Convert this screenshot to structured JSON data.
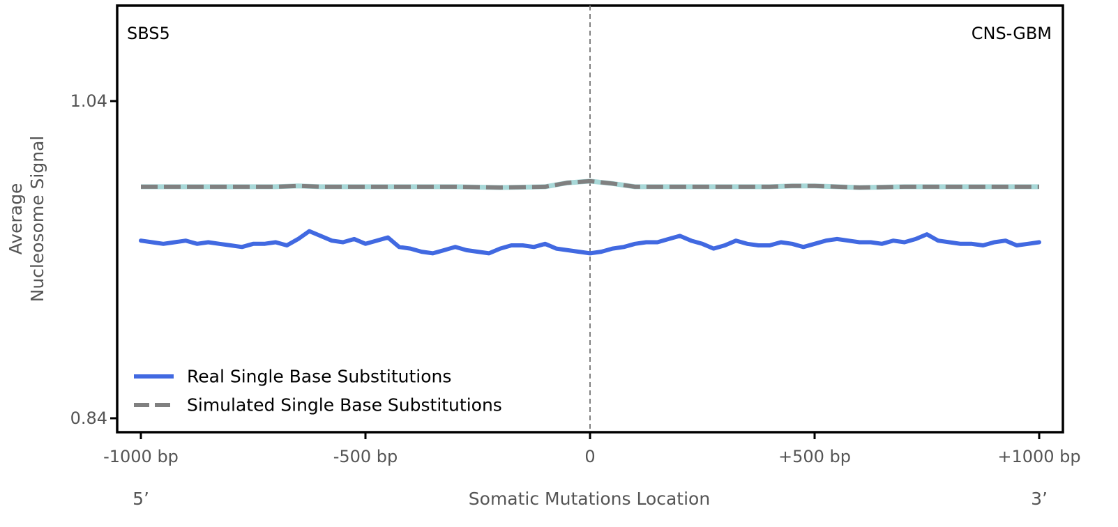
{
  "chart_data": {
    "type": "line",
    "signature_label": "SBS5",
    "tissue_label": "CNS-GBM",
    "xlabel": "Somatic Mutations Location",
    "ylabel_lines": [
      "Average",
      "Nucleosome Signal"
    ],
    "x_tick_labels": [
      "-1000 bp",
      "-500 bp",
      "0",
      "+500 bp",
      "+1000 bp"
    ],
    "x_ticks": [
      -1000,
      -500,
      0,
      500,
      1000
    ],
    "xlim": [
      -1000,
      1000
    ],
    "y_ticks": [
      1.04,
      0.84
    ],
    "y_tick_labels": [
      "1.04",
      "0.84"
    ],
    "ylim": [
      0.84,
      1.04
    ],
    "end_labels": {
      "left": "5’",
      "right": "3’"
    },
    "reference_line_x": 0,
    "grid": false,
    "legend_position": "lower-left",
    "series": [
      {
        "name": "Real Single Base Substitutions",
        "color": "#4169e1",
        "style": "solid",
        "x": [
          -1000,
          -975,
          -950,
          -925,
          -900,
          -875,
          -850,
          -825,
          -800,
          -775,
          -750,
          -725,
          -700,
          -675,
          -650,
          -625,
          -600,
          -575,
          -550,
          -525,
          -500,
          -475,
          -450,
          -425,
          -400,
          -375,
          -350,
          -325,
          -300,
          -275,
          -250,
          -225,
          -200,
          -175,
          -150,
          -125,
          -100,
          -75,
          -50,
          -25,
          0,
          25,
          50,
          75,
          100,
          125,
          150,
          175,
          200,
          225,
          250,
          275,
          300,
          325,
          350,
          375,
          400,
          425,
          450,
          475,
          500,
          525,
          550,
          575,
          600,
          625,
          650,
          675,
          700,
          725,
          750,
          775,
          800,
          825,
          850,
          875,
          900,
          925,
          950,
          975,
          1000
        ],
        "y": [
          0.952,
          0.951,
          0.95,
          0.951,
          0.952,
          0.95,
          0.951,
          0.95,
          0.949,
          0.948,
          0.95,
          0.95,
          0.951,
          0.949,
          0.953,
          0.958,
          0.955,
          0.952,
          0.951,
          0.953,
          0.95,
          0.952,
          0.954,
          0.948,
          0.947,
          0.945,
          0.944,
          0.946,
          0.948,
          0.946,
          0.945,
          0.944,
          0.947,
          0.949,
          0.949,
          0.948,
          0.95,
          0.947,
          0.946,
          0.945,
          0.944,
          0.945,
          0.947,
          0.948,
          0.95,
          0.951,
          0.951,
          0.953,
          0.955,
          0.952,
          0.95,
          0.947,
          0.949,
          0.952,
          0.95,
          0.949,
          0.949,
          0.951,
          0.95,
          0.948,
          0.95,
          0.952,
          0.953,
          0.952,
          0.951,
          0.951,
          0.95,
          0.952,
          0.951,
          0.953,
          0.956,
          0.952,
          0.951,
          0.95,
          0.95,
          0.949,
          0.951,
          0.952,
          0.949,
          0.95,
          0.951
        ]
      },
      {
        "name": "Simulated Single Base Substitutions",
        "color": "#808080",
        "style": "dashed",
        "x": [
          -1000,
          -900,
          -800,
          -700,
          -650,
          -600,
          -500,
          -400,
          -300,
          -200,
          -100,
          -50,
          0,
          50,
          100,
          200,
          300,
          400,
          450,
          500,
          600,
          700,
          800,
          900,
          1000
        ],
        "y": [
          0.986,
          0.986,
          0.986,
          0.986,
          0.9865,
          0.986,
          0.986,
          0.986,
          0.986,
          0.9855,
          0.986,
          0.9885,
          0.9895,
          0.988,
          0.986,
          0.986,
          0.986,
          0.986,
          0.9865,
          0.9865,
          0.9855,
          0.986,
          0.986,
          0.986,
          0.986
        ]
      }
    ]
  }
}
